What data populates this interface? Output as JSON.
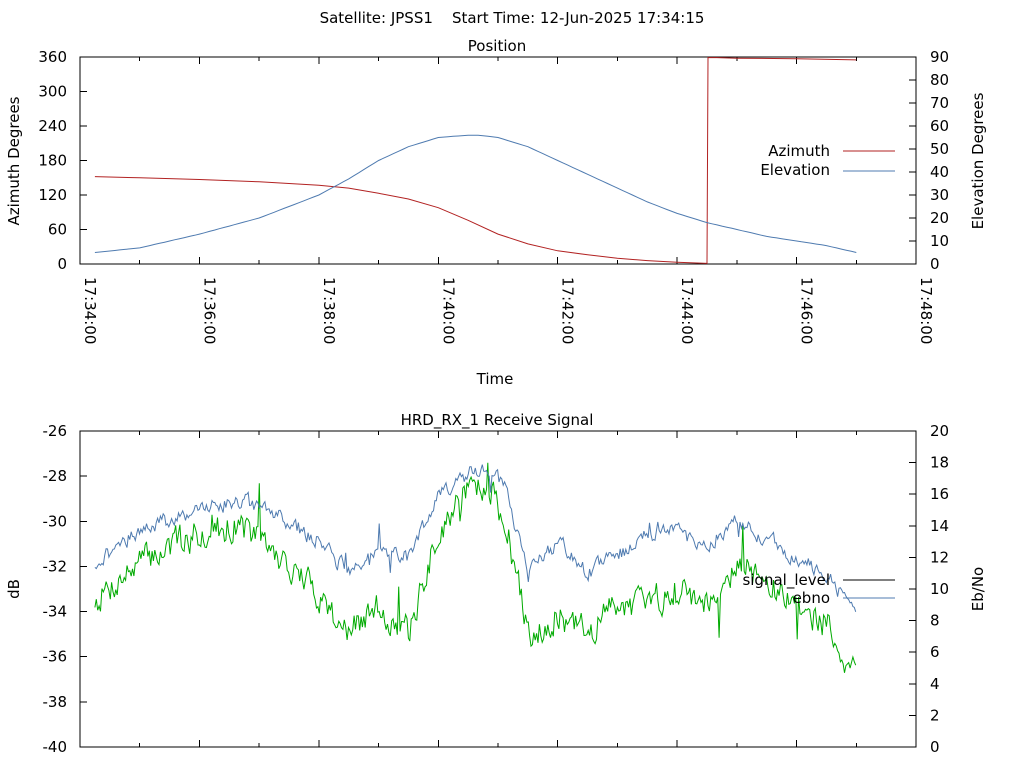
{
  "figure": {
    "header": "Satellite: JPSS1    Start Time: 12-Jun-2025 17:34:15"
  },
  "colors": {
    "azimuth": "#b22222",
    "elevation": "#4f7bb0",
    "signal_level": "#000000",
    "ebno_line": "#4f7bb0",
    "signal_fill": "#00aa00"
  },
  "chart_data": [
    {
      "type": "line",
      "title": "Position",
      "xlabel": "Time",
      "ylabel": "Azimuth Degrees",
      "y2label": "Elevation Degrees",
      "xlim": [
        "17:34:00",
        "17:48:00"
      ],
      "x_ticks": [
        "17:34:00",
        "17:36:00",
        "17:38:00",
        "17:40:00",
        "17:42:00",
        "17:44:00",
        "17:46:00",
        "17:48:00"
      ],
      "ylim": [
        0,
        360
      ],
      "y_ticks": [
        0,
        60,
        120,
        180,
        240,
        300,
        360
      ],
      "y2lim": [
        0,
        90
      ],
      "y2_ticks": [
        0,
        10,
        20,
        30,
        40,
        50,
        60,
        70,
        80,
        90
      ],
      "legend": "right",
      "grid": false,
      "series": [
        {
          "name": "Azimuth",
          "axis": "y",
          "x": [
            "17:34:15",
            "17:35:00",
            "17:36:00",
            "17:37:00",
            "17:38:00",
            "17:38:30",
            "17:39:00",
            "17:39:30",
            "17:40:00",
            "17:40:30",
            "17:41:00",
            "17:41:30",
            "17:42:00",
            "17:42:30",
            "17:43:00",
            "17:43:30",
            "17:44:00",
            "17:44:30",
            "17:44:31",
            "17:44:40",
            "17:45:00",
            "17:46:00",
            "17:47:00"
          ],
          "values": [
            152,
            150,
            147,
            143,
            137,
            132,
            123,
            113,
            98,
            76,
            52,
            35,
            23,
            16,
            10,
            6,
            3,
            1,
            359,
            359,
            358,
            357,
            355
          ]
        },
        {
          "name": "Elevation",
          "axis": "y2",
          "x": [
            "17:34:15",
            "17:35:00",
            "17:36:00",
            "17:37:00",
            "17:38:00",
            "17:38:30",
            "17:39:00",
            "17:39:30",
            "17:40:00",
            "17:40:30",
            "17:40:40",
            "17:41:00",
            "17:41:30",
            "17:42:00",
            "17:42:30",
            "17:43:00",
            "17:43:30",
            "17:44:00",
            "17:44:30",
            "17:45:00",
            "17:45:30",
            "17:46:00",
            "17:46:30",
            "17:47:00"
          ],
          "values": [
            5,
            7,
            13,
            20,
            30,
            37,
            45,
            51,
            55,
            56,
            56,
            55,
            51,
            45,
            39,
            33,
            27,
            22,
            18,
            15,
            12,
            10,
            8,
            5
          ]
        }
      ]
    },
    {
      "type": "line",
      "title": "HRD_RX_1 Receive Signal",
      "ylabel": "dB",
      "y2label": "Eb/No",
      "xlim": [
        "17:34:00",
        "17:48:00"
      ],
      "ylim": [
        -40,
        -26
      ],
      "y_ticks": [
        -40,
        -38,
        -36,
        -34,
        -32,
        -30,
        -28,
        -26
      ],
      "y2lim": [
        0,
        20
      ],
      "y2_ticks": [
        0,
        2,
        4,
        6,
        8,
        10,
        12,
        14,
        16,
        18,
        20
      ],
      "legend": "right",
      "grid": false,
      "series": [
        {
          "name": "signal_level",
          "axis": "y",
          "x": [
            "17:34:15",
            "17:35:00",
            "17:36:00",
            "17:36:40",
            "17:37:30",
            "17:38:00",
            "17:38:30",
            "17:39:00",
            "17:39:30",
            "17:40:00",
            "17:40:30",
            "17:40:50",
            "17:41:10",
            "17:41:30",
            "17:42:00",
            "17:42:30",
            "17:43:00",
            "17:43:30",
            "17:44:00",
            "17:44:30",
            "17:45:00",
            "17:45:30",
            "17:46:00",
            "17:46:30",
            "17:47:00"
          ],
          "values": [
            -33.5,
            -31.8,
            -30.5,
            -30.1,
            -32.0,
            -33.2,
            -35.0,
            -33.8,
            -35.0,
            -30.5,
            -28.5,
            -28.3,
            -30.5,
            -35.0,
            -34.2,
            -35.0,
            -33.5,
            -33.8,
            -32.8,
            -33.6,
            -31.8,
            -32.8,
            -33.8,
            -34.5,
            -36.8
          ]
        },
        {
          "name": "ebno",
          "axis": "y2",
          "x": [
            "17:34:15",
            "17:35:00",
            "17:36:00",
            "17:36:40",
            "17:37:30",
            "17:38:00",
            "17:38:30",
            "17:39:00",
            "17:39:30",
            "17:40:00",
            "17:40:30",
            "17:40:50",
            "17:41:10",
            "17:41:30",
            "17:42:00",
            "17:42:30",
            "17:43:00",
            "17:43:30",
            "17:44:00",
            "17:44:30",
            "17:45:00",
            "17:45:30",
            "17:46:00",
            "17:46:30",
            "17:47:00"
          ],
          "values": [
            11.6,
            13.8,
            15.0,
            15.7,
            14.3,
            13.0,
            11.0,
            12.5,
            12.0,
            16.0,
            17.3,
            17.8,
            16.0,
            10.8,
            13.0,
            11.0,
            12.2,
            13.5,
            13.6,
            12.8,
            14.2,
            13.2,
            12.0,
            10.8,
            8.5
          ]
        }
      ]
    }
  ]
}
